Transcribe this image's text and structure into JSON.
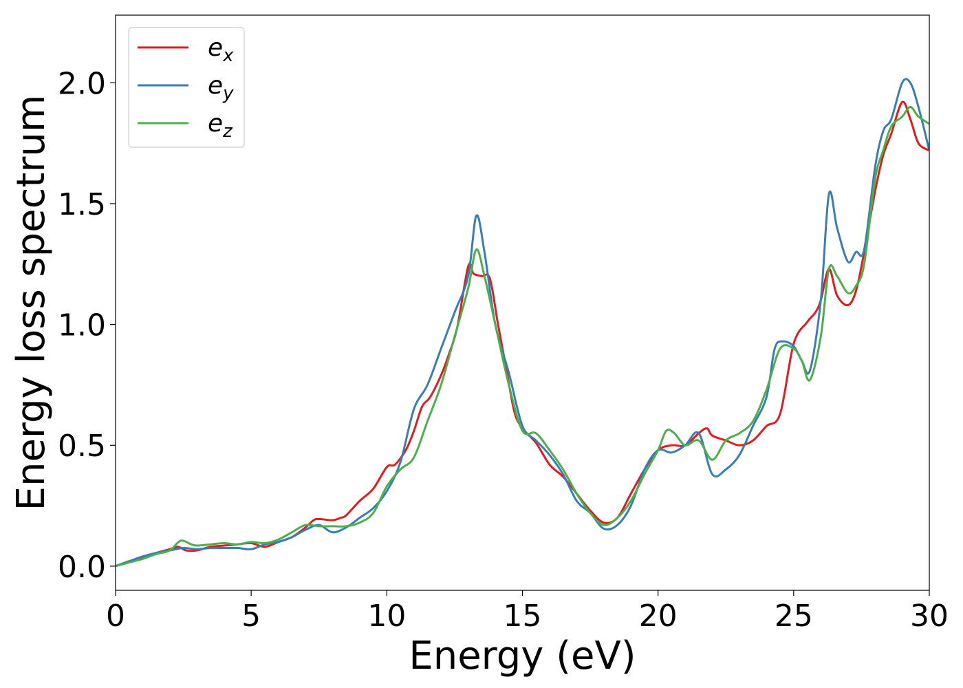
{
  "chart_data": {
    "type": "line",
    "title": "",
    "xlabel": "Energy (eV)",
    "ylabel": "Energy loss spectrum",
    "xlim": [
      0,
      30
    ],
    "ylim": [
      -0.1,
      2.28
    ],
    "xticks": [
      0,
      5,
      10,
      15,
      20,
      25,
      30
    ],
    "yticks": [
      0.0,
      0.5,
      1.0,
      1.5,
      2.0
    ],
    "grid": false,
    "legend_position": "top-left",
    "series": [
      {
        "name": "e_x",
        "legend_base": "e",
        "legend_sub": "x",
        "color": "#e41a1c",
        "x": [
          0,
          0.5,
          1,
          1.5,
          2,
          2.3,
          2.6,
          3,
          3.5,
          4,
          4.5,
          5,
          5.5,
          6,
          6.5,
          7,
          7.3,
          7.5,
          8,
          8.3,
          8.5,
          9,
          9.5,
          10,
          10.3,
          10.7,
          11,
          11.3,
          11.6,
          12,
          12.3,
          12.6,
          13,
          13.2,
          13.5,
          13.8,
          14.1,
          14.4,
          14.7,
          15,
          15.5,
          16,
          16.5,
          17,
          17.5,
          18,
          18.5,
          19,
          19.5,
          20,
          20.5,
          21,
          21.5,
          21.8,
          22,
          22.5,
          23,
          23.5,
          24,
          24.5,
          25,
          25.5,
          25.8,
          26,
          26.3,
          26.6,
          27,
          27.3,
          27.6,
          28,
          28.3,
          28.6,
          29,
          29.3,
          29.6,
          30
        ],
        "y": [
          0.0,
          0.02,
          0.035,
          0.055,
          0.07,
          0.08,
          0.065,
          0.065,
          0.08,
          0.085,
          0.09,
          0.095,
          0.08,
          0.1,
          0.12,
          0.16,
          0.19,
          0.195,
          0.19,
          0.2,
          0.21,
          0.27,
          0.32,
          0.41,
          0.42,
          0.48,
          0.56,
          0.66,
          0.7,
          0.79,
          0.88,
          0.99,
          1.24,
          1.21,
          1.2,
          1.19,
          1.0,
          0.82,
          0.64,
          0.57,
          0.51,
          0.42,
          0.37,
          0.3,
          0.23,
          0.18,
          0.2,
          0.3,
          0.4,
          0.48,
          0.5,
          0.5,
          0.55,
          0.57,
          0.54,
          0.52,
          0.5,
          0.52,
          0.58,
          0.63,
          0.92,
          1.01,
          1.05,
          1.1,
          1.23,
          1.12,
          1.08,
          1.14,
          1.3,
          1.55,
          1.7,
          1.79,
          1.92,
          1.85,
          1.75,
          1.72
        ]
      },
      {
        "name": "e_y",
        "legend_base": "e",
        "legend_sub": "y",
        "color": "#377eb8",
        "x": [
          0,
          0.5,
          1,
          1.5,
          2,
          2.5,
          3,
          3.5,
          4,
          4.5,
          5,
          5.5,
          6,
          6.5,
          7,
          7.5,
          8,
          8.5,
          9,
          9.5,
          10,
          10.5,
          11,
          11.5,
          12,
          12.5,
          13,
          13.3,
          13.6,
          14,
          14.5,
          15,
          15.5,
          16,
          16.5,
          17,
          17.5,
          18,
          18.5,
          19,
          19.5,
          20,
          20.5,
          21,
          21.5,
          22,
          22.5,
          23,
          23.5,
          24,
          24.3,
          24.6,
          25,
          25.3,
          25.6,
          26,
          26.3,
          26.6,
          27,
          27.3,
          27.6,
          28,
          28.3,
          28.6,
          29,
          29.3,
          29.6,
          30
        ],
        "y": [
          0.0,
          0.02,
          0.04,
          0.055,
          0.065,
          0.075,
          0.07,
          0.075,
          0.075,
          0.075,
          0.07,
          0.09,
          0.1,
          0.12,
          0.15,
          0.17,
          0.14,
          0.16,
          0.2,
          0.24,
          0.31,
          0.43,
          0.65,
          0.75,
          0.9,
          1.05,
          1.2,
          1.45,
          1.3,
          1.0,
          0.8,
          0.58,
          0.52,
          0.46,
          0.38,
          0.27,
          0.22,
          0.155,
          0.17,
          0.25,
          0.4,
          0.48,
          0.47,
          0.5,
          0.55,
          0.38,
          0.4,
          0.46,
          0.58,
          0.7,
          0.9,
          0.93,
          0.91,
          0.85,
          0.81,
          1.1,
          1.54,
          1.4,
          1.26,
          1.3,
          1.31,
          1.65,
          1.8,
          1.85,
          2.0,
          2.0,
          1.9,
          1.72
        ]
      },
      {
        "name": "e_z",
        "legend_base": "e",
        "legend_sub": "z",
        "color": "#4daf4a",
        "x": [
          0,
          0.5,
          1,
          1.5,
          2,
          2.4,
          2.8,
          3,
          3.5,
          4,
          4.5,
          5,
          5.5,
          6,
          6.5,
          7,
          7.5,
          8,
          8.5,
          9,
          9.5,
          10,
          10.5,
          11,
          11.5,
          12,
          12.5,
          13,
          13.3,
          13.6,
          14,
          14.5,
          15,
          15.5,
          16,
          16.5,
          17,
          17.5,
          18,
          18.5,
          19,
          19.5,
          20,
          20.3,
          20.6,
          21,
          21.5,
          22,
          22.5,
          23,
          23.5,
          24,
          24.5,
          25,
          25.3,
          25.6,
          26,
          26.3,
          26.6,
          27,
          27.3,
          27.6,
          28,
          28.3,
          28.6,
          29,
          29.3,
          29.6,
          30
        ],
        "y": [
          0.0,
          0.015,
          0.03,
          0.05,
          0.065,
          0.105,
          0.09,
          0.085,
          0.09,
          0.095,
          0.09,
          0.1,
          0.095,
          0.11,
          0.14,
          0.17,
          0.165,
          0.165,
          0.165,
          0.18,
          0.22,
          0.33,
          0.4,
          0.45,
          0.6,
          0.75,
          0.95,
          1.15,
          1.31,
          1.2,
          1.0,
          0.75,
          0.56,
          0.55,
          0.48,
          0.4,
          0.3,
          0.22,
          0.17,
          0.2,
          0.27,
          0.38,
          0.48,
          0.56,
          0.55,
          0.5,
          0.52,
          0.44,
          0.52,
          0.55,
          0.6,
          0.73,
          0.9,
          0.9,
          0.85,
          0.77,
          0.95,
          1.23,
          1.2,
          1.13,
          1.16,
          1.25,
          1.6,
          1.72,
          1.82,
          1.86,
          1.9,
          1.86,
          1.83
        ]
      }
    ]
  }
}
